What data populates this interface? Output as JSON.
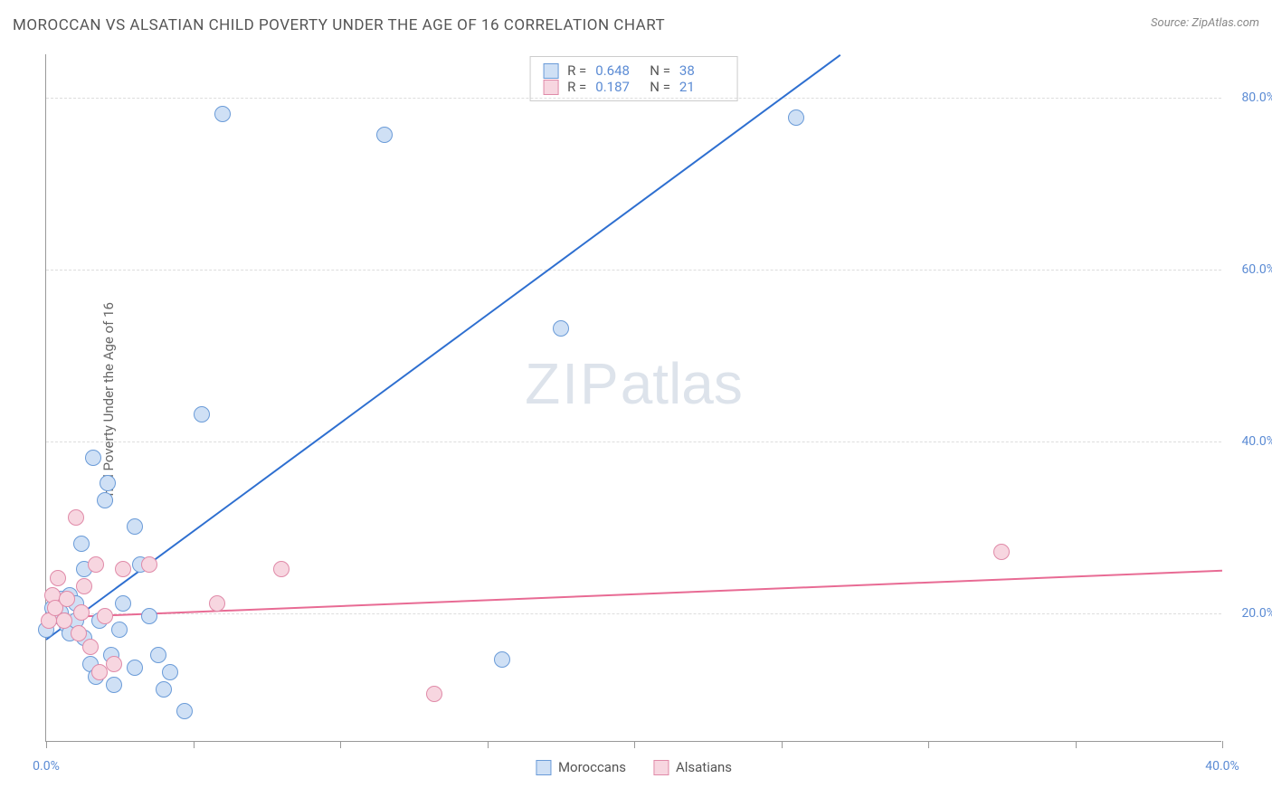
{
  "title": "MOROCCAN VS ALSATIAN CHILD POVERTY UNDER THE AGE OF 16 CORRELATION CHART",
  "source_label": "Source: ZipAtlas.com",
  "ylabel": "Child Poverty Under the Age of 16",
  "watermark": {
    "bold": "ZIP",
    "light": "atlas"
  },
  "chart": {
    "type": "scatter",
    "xlim": [
      0,
      40
    ],
    "ylim": [
      5,
      85
    ],
    "ytick_values": [
      20,
      40,
      60,
      80
    ],
    "ytick_labels": [
      "20.0%",
      "40.0%",
      "60.0%",
      "80.0%"
    ],
    "xtick_values": [
      0,
      5,
      10,
      15,
      20,
      25,
      30,
      35,
      40
    ],
    "xtick_labels": {
      "0": "0.0%",
      "40": "40.0%"
    },
    "grid_color": "#dddddd",
    "axis_color": "#999999",
    "tick_label_color": "#5b8bd4",
    "background_color": "#ffffff"
  },
  "series": [
    {
      "key": "moroccans",
      "label": "Moroccans",
      "fill": "#cfe0f5",
      "stroke": "#6a9bd8",
      "line_color": "#2e6fd0",
      "R": "0.648",
      "N": "38",
      "trend": {
        "x1": 0,
        "y1": 17,
        "x2": 27,
        "y2": 85
      },
      "points": [
        [
          0.0,
          18
        ],
        [
          0.2,
          20.5
        ],
        [
          0.3,
          19.5
        ],
        [
          0.5,
          21.5
        ],
        [
          0.5,
          20
        ],
        [
          0.6,
          19
        ],
        [
          0.7,
          18.5
        ],
        [
          0.8,
          22
        ],
        [
          0.8,
          17.5
        ],
        [
          1.0,
          21
        ],
        [
          1.0,
          19
        ],
        [
          1.2,
          28
        ],
        [
          1.3,
          25
        ],
        [
          1.3,
          17
        ],
        [
          1.5,
          14
        ],
        [
          1.6,
          38
        ],
        [
          1.7,
          12.5
        ],
        [
          1.8,
          19
        ],
        [
          2.0,
          33
        ],
        [
          2.1,
          35
        ],
        [
          2.2,
          15
        ],
        [
          2.3,
          11.5
        ],
        [
          2.5,
          18
        ],
        [
          2.6,
          21
        ],
        [
          3.0,
          13.5
        ],
        [
          3.0,
          30
        ],
        [
          3.2,
          25.5
        ],
        [
          3.5,
          19.5
        ],
        [
          3.8,
          15
        ],
        [
          4.0,
          11
        ],
        [
          4.2,
          13
        ],
        [
          4.7,
          8.5
        ],
        [
          5.3,
          43
        ],
        [
          6.0,
          78
        ],
        [
          11.5,
          75.5
        ],
        [
          15.5,
          14.5
        ],
        [
          17.5,
          53
        ],
        [
          25.5,
          77.5
        ]
      ]
    },
    {
      "key": "alsatians",
      "label": "Alsatians",
      "fill": "#f7d6e0",
      "stroke": "#e08aa8",
      "line_color": "#e86b94",
      "R": "0.187",
      "N": "21",
      "trend": {
        "x1": 0,
        "y1": 19.5,
        "x2": 40,
        "y2": 25
      },
      "points": [
        [
          0.1,
          19
        ],
        [
          0.2,
          22
        ],
        [
          0.3,
          20.5
        ],
        [
          0.4,
          24
        ],
        [
          0.6,
          19
        ],
        [
          0.7,
          21.5
        ],
        [
          1.0,
          31
        ],
        [
          1.1,
          17.5
        ],
        [
          1.2,
          20
        ],
        [
          1.3,
          23
        ],
        [
          1.5,
          16
        ],
        [
          1.7,
          25.5
        ],
        [
          1.8,
          13
        ],
        [
          2.0,
          19.5
        ],
        [
          2.3,
          14
        ],
        [
          2.6,
          25
        ],
        [
          3.5,
          25.5
        ],
        [
          5.8,
          21
        ],
        [
          8.0,
          25
        ],
        [
          13.2,
          10.5
        ],
        [
          32.5,
          27
        ]
      ]
    }
  ],
  "stats_legend": {
    "r_prefix": "R =",
    "n_prefix": "N ="
  }
}
